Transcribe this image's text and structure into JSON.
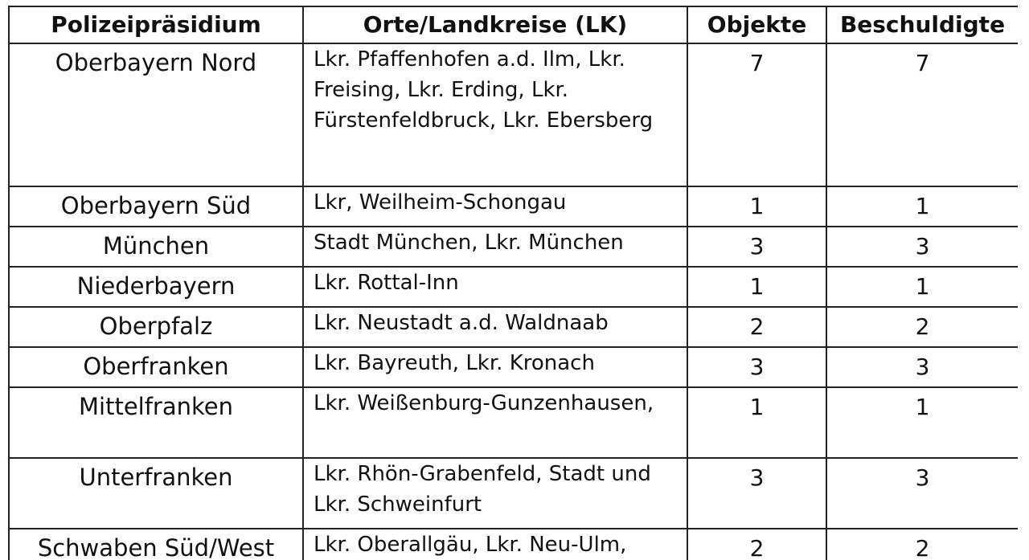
{
  "table": {
    "headers": [
      "Polizeipräsidium",
      "Orte/Landkreise (LK)",
      "Objekte",
      "Beschuldigte"
    ],
    "rows": [
      {
        "praesidium": "Oberbayern Nord",
        "orte": "Lkr. Pfaffenhofen a.d. Ilm, Lkr. Freising, Lkr. Erding, Lkr. Fürstenfeldbruck, Lkr. Ebersberg",
        "objekte": "7",
        "beschuldigte": "7"
      },
      {
        "praesidium": "Oberbayern Süd",
        "orte": "Lkr, Weilheim-Schongau",
        "objekte": "1",
        "beschuldigte": "1"
      },
      {
        "praesidium": "München",
        "orte": "Stadt München, Lkr. München",
        "objekte": "3",
        "beschuldigte": "3"
      },
      {
        "praesidium": "Niederbayern",
        "orte": "Lkr. Rottal-Inn",
        "objekte": "1",
        "beschuldigte": "1"
      },
      {
        "praesidium": "Oberpfalz",
        "orte": "Lkr. Neustadt a.d. Waldnaab",
        "objekte": "2",
        "beschuldigte": "2"
      },
      {
        "praesidium": "Oberfranken",
        "orte": "Lkr. Bayreuth, Lkr. Kronach",
        "objekte": "3",
        "beschuldigte": "3"
      },
      {
        "praesidium": "Mittelfranken",
        "orte": "Lkr. Weißenburg-Gunzenhausen,",
        "objekte": "1",
        "beschuldigte": "1"
      },
      {
        "praesidium": "Unterfranken",
        "orte": "Lkr. Rhön-Grabenfeld, Stadt und Lkr. Schweinfurt",
        "objekte": "3",
        "beschuldigte": "3"
      },
      {
        "praesidium": "Schwaben Süd/West",
        "orte": "Lkr. Oberallgäu, Lkr. Neu-Ulm,",
        "objekte": "2",
        "beschuldigte": "2"
      }
    ]
  }
}
